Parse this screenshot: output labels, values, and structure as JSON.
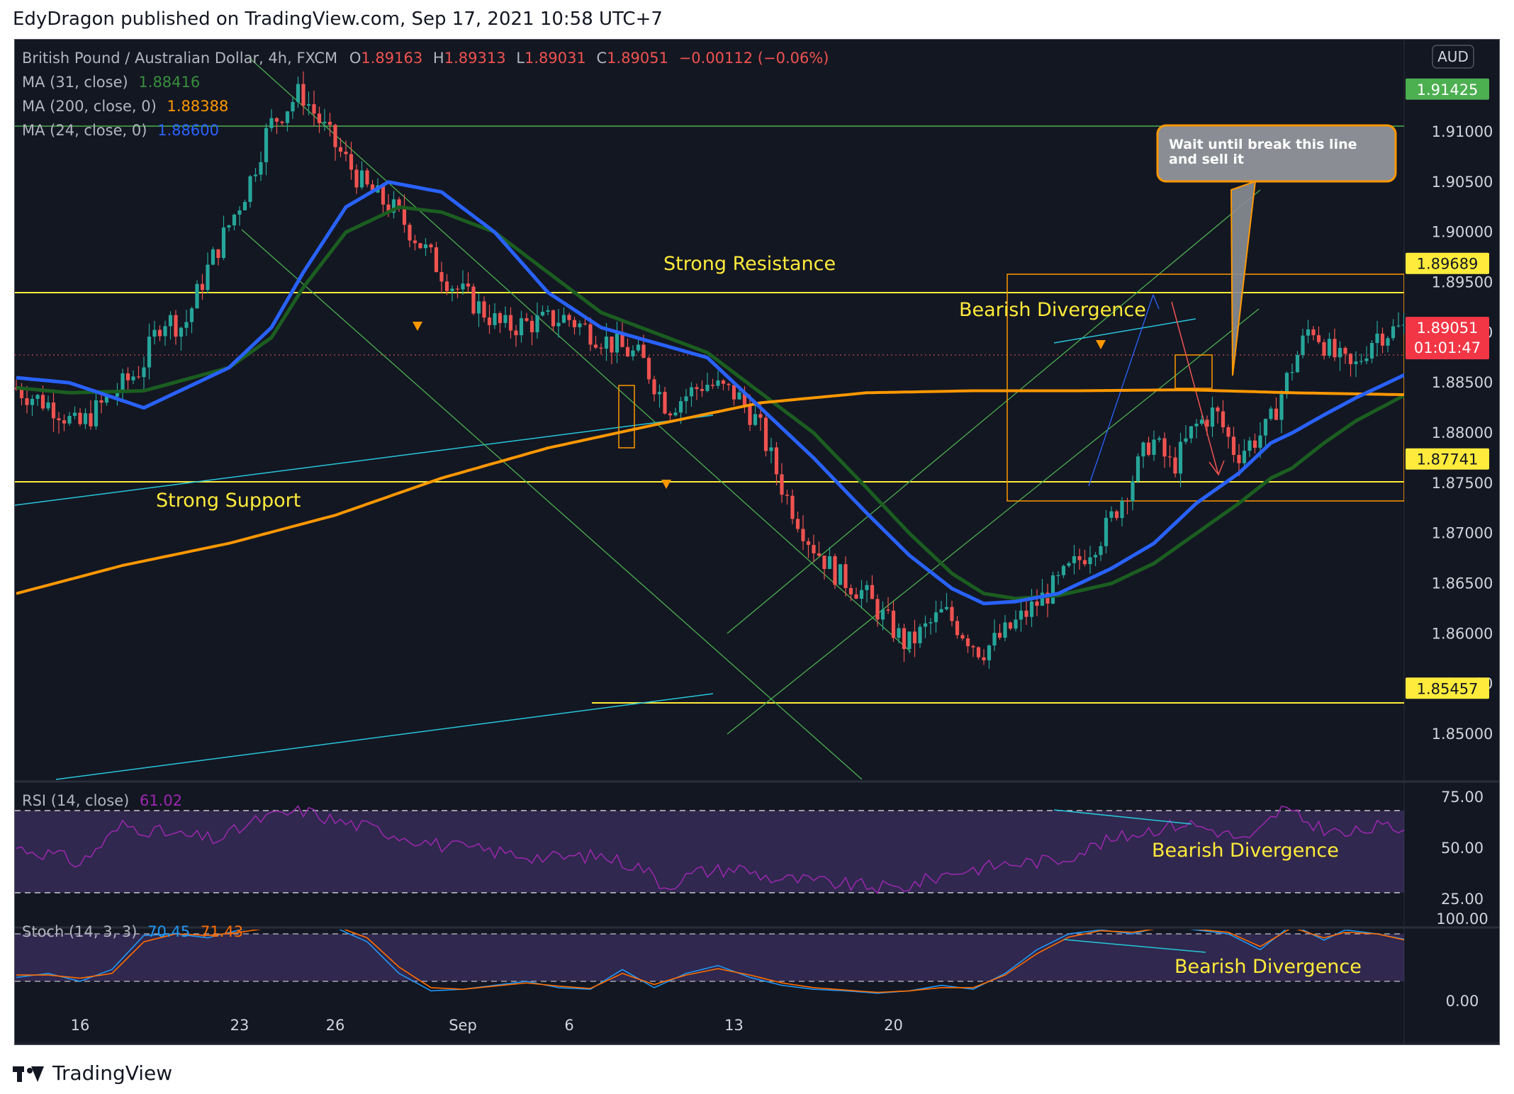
{
  "header": {
    "publisher_line": "EdyDragon published on TradingView.com, Sep 17, 2021 10:58 UTC+7"
  },
  "footer": {
    "brand": "TradingView"
  },
  "legend": {
    "symbol": "British Pound / Australian Dollar, 4h, FXCM",
    "ohlc": {
      "o_label": "O",
      "o": "1.89163",
      "h_label": "H",
      "h": "1.89313",
      "l_label": "L",
      "l": "1.89031",
      "c_label": "C",
      "c": "1.89051",
      "change": "−0.00112 (−0.06%)"
    },
    "ma31": {
      "label": "MA (31, close)",
      "value": "1.88416"
    },
    "ma200": {
      "label": "MA (200, close, 0)",
      "value": "1.88388"
    },
    "ma24": {
      "label": "MA (24, close, 0)",
      "value": "1.88600"
    },
    "rsi": {
      "label": "RSI (14, close)",
      "value": "61.02"
    },
    "stoch": {
      "label": "Stoch (14, 3, 3)",
      "k": "70.45",
      "d": "71.43"
    }
  },
  "currency_badge": "AUD",
  "price_tags": [
    {
      "text": "1.91425",
      "price": 1.91425,
      "bg": "#4caf50",
      "color": "#ffffff"
    },
    {
      "text": "1.89689",
      "price": 1.89689,
      "bg": "#ffeb3b",
      "color": "#131722"
    },
    {
      "text": "1.87741",
      "price": 1.87741,
      "bg": "#ffeb3b",
      "color": "#131722"
    },
    {
      "text": "1.85457",
      "price": 1.85457,
      "bg": "#ffeb3b",
      "color": "#131722"
    }
  ],
  "last_price": {
    "text": "1.89051",
    "countdown": "01:01:47",
    "price": 1.89051,
    "bg": "#f23645"
  },
  "annotations": {
    "strong_resistance": "Strong Resistance",
    "strong_support": "Strong Support",
    "bearish_div_main": "Bearish Divergence",
    "bearish_div_rsi": "Bearish Divergence",
    "bearish_div_stoch": "Bearish Divergence",
    "callout": "Wait until break this line and sell it"
  },
  "colors": {
    "background": "#131722",
    "up": "#26a69a",
    "down": "#ef5350",
    "ma31": "#1b5e20",
    "ma200": "#ff9800",
    "ma24": "#2962ff",
    "rsi": "#9c27b0",
    "stoch_k": "#2196f3",
    "stoch_d": "#ff6d00",
    "level": "#ffeb3b",
    "channel": "#4caf50"
  },
  "chart_data": [
    {
      "type": "candlestick",
      "title": "British Pound / Australian Dollar, 4h, FXCM",
      "x_ticks": [
        "16",
        "23",
        "26",
        "Sep",
        "6",
        "13",
        "20"
      ],
      "y_ticks": [
        1.85,
        1.855,
        1.86,
        1.865,
        1.87,
        1.875,
        1.88,
        1.885,
        1.89,
        1.895,
        1.9,
        1.905,
        1.91
      ],
      "ylim": [
        1.8425,
        1.9185
      ],
      "grid": false,
      "anchors": {
        "x": [
          0,
          8,
          12,
          24,
          28,
          32,
          36,
          44,
          48,
          54,
          60,
          66,
          72,
          82,
          92,
          104,
          112,
          118,
          123,
          130,
          136,
          140,
          145,
          150,
          155,
          160,
          168,
          175,
          182,
          186,
          196,
          205,
          210,
          214,
          218,
          222,
          226,
          230,
          236,
          240,
          244,
          248,
          252,
          256,
          262
        ],
        "price": [
          1.8845,
          1.8825,
          1.8805,
          1.8865,
          1.8915,
          1.8905,
          1.8958,
          1.9045,
          1.9105,
          1.914,
          1.909,
          1.9045,
          1.902,
          1.895,
          1.8905,
          1.8915,
          1.889,
          1.8875,
          1.8825,
          1.885,
          1.8838,
          1.881,
          1.874,
          1.869,
          1.8658,
          1.864,
          1.8588,
          1.8622,
          1.8582,
          1.8598,
          1.8648,
          1.87,
          1.875,
          1.8795,
          1.8765,
          1.8805,
          1.8822,
          1.8778,
          1.8805,
          1.886,
          1.8908,
          1.8878,
          1.8862,
          1.8898,
          1.8905
        ]
      },
      "series": [
        {
          "name": "MA (31, close)",
          "anchors_x": [
            0,
            10,
            24,
            40,
            48,
            54,
            62,
            72,
            80,
            90,
            100,
            110,
            120,
            130,
            140,
            150,
            160,
            168,
            176,
            182,
            188,
            196,
            206,
            214,
            222,
            230,
            236,
            240,
            246,
            252,
            262
          ],
          "values": [
            1.8845,
            1.884,
            1.8842,
            1.8865,
            1.8895,
            1.8945,
            1.9,
            1.9025,
            1.902,
            1.9,
            1.896,
            1.892,
            1.89,
            1.888,
            1.884,
            1.88,
            1.8745,
            1.87,
            1.866,
            1.864,
            1.8635,
            1.8638,
            1.865,
            1.867,
            1.87,
            1.873,
            1.8755,
            1.8765,
            1.879,
            1.8812,
            1.884
          ]
        },
        {
          "name": "MA (200, close, 0)",
          "anchors_x": [
            0,
            20,
            40,
            60,
            80,
            100,
            120,
            140,
            160,
            180,
            200,
            220,
            240,
            262
          ],
          "values": [
            1.864,
            1.8668,
            1.869,
            1.8718,
            1.8755,
            1.8785,
            1.8808,
            1.883,
            1.884,
            1.8842,
            1.8842,
            1.8843,
            1.884,
            1.8838
          ]
        },
        {
          "name": "MA (24, close, 0)",
          "anchors_x": [
            0,
            10,
            24,
            40,
            48,
            54,
            62,
            70,
            80,
            90,
            100,
            110,
            120,
            130,
            140,
            150,
            160,
            168,
            176,
            182,
            188,
            196,
            206,
            214,
            222,
            230,
            236,
            240,
            246,
            252,
            262
          ],
          "values": [
            1.8855,
            1.885,
            1.8825,
            1.8865,
            1.8905,
            1.896,
            1.9025,
            1.905,
            1.904,
            1.9,
            1.894,
            1.8905,
            1.889,
            1.8875,
            1.8825,
            1.8775,
            1.872,
            1.8678,
            1.8645,
            1.863,
            1.8632,
            1.864,
            1.8665,
            1.869,
            1.873,
            1.876,
            1.879,
            1.88,
            1.8818,
            1.8835,
            1.886
          ]
        }
      ]
    },
    {
      "type": "line",
      "title": "RSI (14, close)",
      "ylim": [
        25,
        75
      ],
      "y_ticks": [
        25,
        50,
        75
      ],
      "reference_lines": [
        30,
        70
      ],
      "anchors_x": [
        0,
        8,
        12,
        20,
        30,
        38,
        46,
        54,
        60,
        66,
        72,
        80,
        90,
        100,
        110,
        118,
        122,
        128,
        136,
        142,
        148,
        156,
        166,
        176,
        186,
        196,
        204,
        212,
        220,
        226,
        232,
        238,
        244,
        250,
        256,
        262
      ],
      "series": [
        {
          "name": "RSI",
          "values": [
            52,
            48,
            44,
            63,
            58,
            56,
            66,
            70,
            65,
            62,
            58,
            53,
            50,
            47,
            48,
            42,
            33,
            40,
            42,
            37,
            36,
            34,
            32,
            40,
            44,
            46,
            54,
            60,
            64,
            60,
            55,
            71,
            63,
            58,
            62,
            61
          ]
        }
      ]
    },
    {
      "type": "line",
      "title": "Stoch (14, 3, 3)",
      "ylim": [
        0,
        100
      ],
      "y_ticks": [
        0,
        100
      ],
      "reference_lines": [
        20,
        80
      ],
      "anchors_x": [
        0,
        6,
        12,
        18,
        24,
        30,
        36,
        42,
        48,
        54,
        60,
        66,
        72,
        78,
        84,
        90,
        96,
        102,
        108,
        114,
        120,
        126,
        132,
        138,
        144,
        150,
        156,
        162,
        168,
        174,
        180,
        186,
        192,
        198,
        204,
        210,
        216,
        222,
        228,
        234,
        240,
        246,
        250,
        256,
        262
      ],
      "series": [
        {
          "name": "%K",
          "values": [
            25,
            30,
            20,
            35,
            78,
            80,
            75,
            85,
            90,
            95,
            88,
            70,
            30,
            8,
            10,
            15,
            20,
            12,
            10,
            35,
            12,
            30,
            40,
            25,
            15,
            10,
            8,
            5,
            8,
            15,
            10,
            30,
            60,
            80,
            85,
            80,
            90,
            85,
            80,
            60,
            92,
            72,
            85,
            80,
            72
          ]
        },
        {
          "name": "%D",
          "values": [
            28,
            28,
            24,
            30,
            70,
            80,
            78,
            82,
            88,
            93,
            90,
            75,
            38,
            12,
            10,
            14,
            18,
            14,
            11,
            30,
            16,
            28,
            36,
            28,
            18,
            12,
            9,
            6,
            8,
            12,
            12,
            28,
            55,
            76,
            84,
            82,
            88,
            86,
            82,
            64,
            88,
            75,
            82,
            80,
            71
          ]
        }
      ]
    }
  ]
}
